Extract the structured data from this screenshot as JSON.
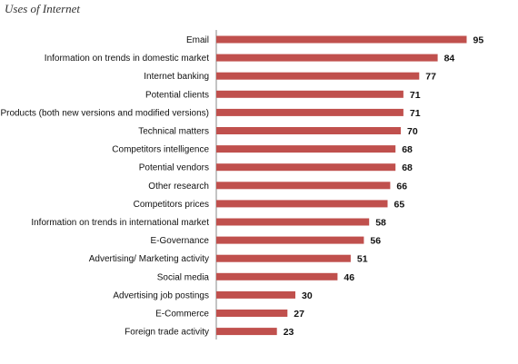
{
  "chart_data": {
    "type": "bar",
    "orientation": "horizontal",
    "title": "Uses of Internet",
    "xlabel": "",
    "ylabel": "",
    "xlim": [
      0,
      100
    ],
    "grid": false,
    "legend": "none",
    "bar_color": "#c0504d",
    "categories": [
      "Email",
      "Information on trends in domestic market",
      "Internet banking",
      "Potential clients",
      "Products (both new versions and modified versions)",
      "Technical matters",
      "Competitors intelligence",
      "Potential vendors",
      "Other research",
      "Competitors prices",
      "Information on trends in international market",
      "E-Governance",
      "Advertising/ Marketing activity",
      "Social media",
      "Advertising job postings",
      "E-Commerce",
      "Foreign trade activity"
    ],
    "values": [
      95,
      84,
      77,
      71,
      71,
      70,
      68,
      68,
      66,
      65,
      58,
      56,
      51,
      46,
      30,
      27,
      23
    ]
  }
}
